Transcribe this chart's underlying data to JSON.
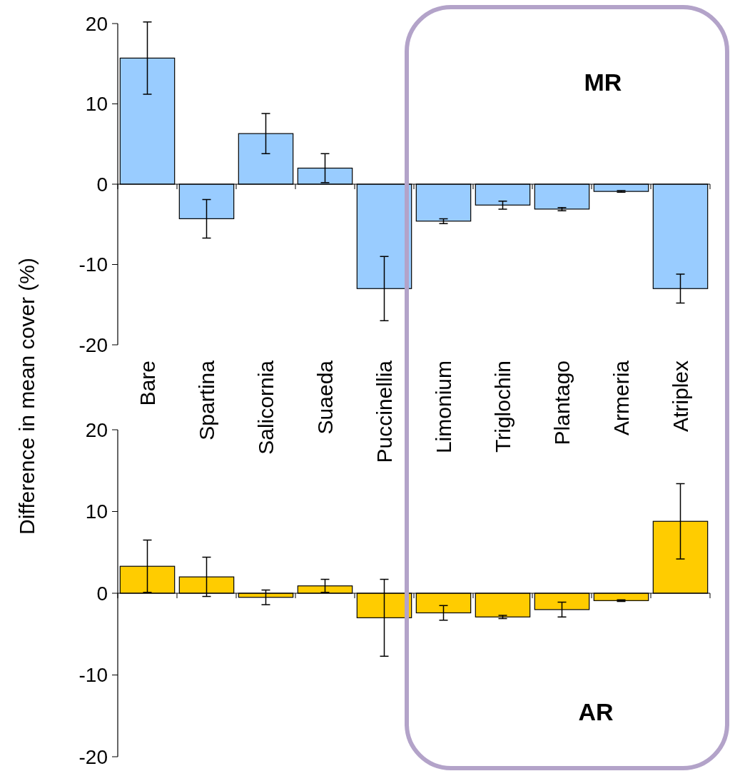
{
  "chart_data": [
    {
      "type": "bar",
      "ylabel": "Difference in mean cover (%)",
      "categories": [
        "Bare",
        "Spartina",
        "Salicornia",
        "Suaeda",
        "Puccinellia",
        "Limonium",
        "Triglochin",
        "Plantago",
        "Armeria",
        "Atriplex"
      ],
      "color": "#99ccff",
      "values": [
        15.7,
        -4.3,
        6.3,
        2.0,
        -13.0,
        -4.6,
        -2.6,
        -3.1,
        -0.9,
        -13.0
      ],
      "errors": [
        4.5,
        2.4,
        2.5,
        1.8,
        4.0,
        0.3,
        0.5,
        0.2,
        0.1,
        1.8
      ],
      "ylim": [
        -20,
        20
      ],
      "yticks": [
        -20,
        -10,
        0,
        10,
        20
      ],
      "annotations": [
        "MR"
      ]
    },
    {
      "type": "bar",
      "categories": [
        "Bare",
        "Spartina",
        "Salicornia",
        "Suaeda",
        "Puccinellia",
        "Limonium",
        "Triglochin",
        "Plantago",
        "Armeria",
        "Atriplex"
      ],
      "color": "#ffcc00",
      "values": [
        3.3,
        2.0,
        -0.5,
        0.9,
        -3.0,
        -2.4,
        -2.9,
        -2.0,
        -0.9,
        8.8
      ],
      "errors": [
        3.2,
        2.4,
        0.9,
        0.8,
        4.7,
        0.9,
        0.2,
        0.9,
        0.1,
        4.6
      ],
      "ylim": [
        -20,
        20
      ],
      "yticks": [
        -20,
        -10,
        0,
        10,
        20
      ],
      "tick_labels": "y",
      "annotations": [
        "AR"
      ]
    }
  ]
}
